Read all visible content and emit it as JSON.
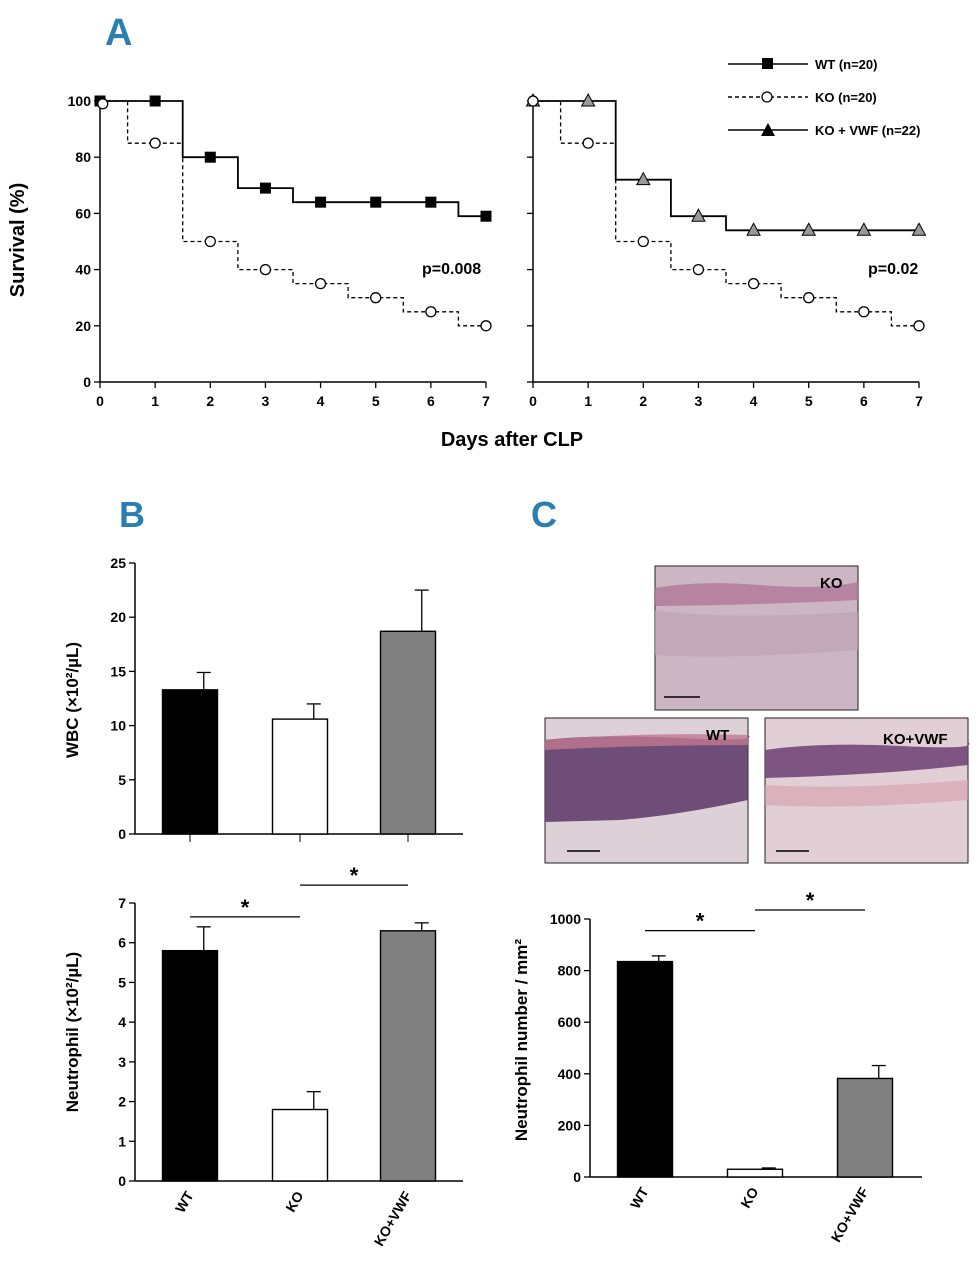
{
  "panels": {
    "a": "A",
    "b": "B",
    "c": "C"
  },
  "colors": {
    "wt": "#000000",
    "ko": "#ffffff",
    "kovwf": "#808080",
    "accent": "#2a7fb0"
  },
  "panel_a": {
    "xlabel": "Days after CLP",
    "ylabel": "Survival (%)",
    "legend": {
      "wt": "WT (n=20)",
      "ko": "KO (n=20)",
      "kovwf": "KO + VWF (n=22)"
    },
    "p_left": "p=0.008",
    "p_right": "p=0.02"
  },
  "panel_b_top": {
    "ylabel": "WBC (×10²/µL)"
  },
  "panel_b_bottom": {
    "ylabel": "Neutrophil (×10²/µL)",
    "sig_marks": [
      "*",
      "*"
    ]
  },
  "panel_c": {
    "histo_labels": {
      "ko": "KO",
      "wt": "WT",
      "kovwf": "KO+VWF"
    },
    "ylabel": "Neutrophil number / mm²",
    "sig_marks": [
      "*",
      "*"
    ]
  },
  "chart_data": [
    {
      "id": "survival-left",
      "type": "line",
      "title": "",
      "xlabel": "Days after CLP",
      "ylabel": "Survival (%)",
      "xlim": [
        0,
        7
      ],
      "ylim": [
        0,
        100
      ],
      "xticks": [
        0,
        1,
        2,
        3,
        4,
        5,
        6,
        7
      ],
      "yticks": [
        0,
        20,
        40,
        60,
        80,
        100
      ],
      "series": [
        {
          "name": "WT (n=20)",
          "marker": "square",
          "line": "solid",
          "steps": [
            [
              0,
              100
            ],
            [
              1.5,
              100
            ],
            [
              1.5,
              80
            ],
            [
              2.5,
              80
            ],
            [
              2.5,
              69
            ],
            [
              3.5,
              69
            ],
            [
              3.5,
              64
            ],
            [
              6.5,
              64
            ],
            [
              6.5,
              59
            ],
            [
              7,
              59
            ]
          ],
          "points": [
            [
              0,
              100
            ],
            [
              1,
              100
            ],
            [
              2,
              80
            ],
            [
              3,
              69
            ],
            [
              4,
              64
            ],
            [
              5,
              64
            ],
            [
              6,
              64
            ],
            [
              7,
              59
            ]
          ]
        },
        {
          "name": "KO (n=20)",
          "marker": "circle",
          "line": "dashed",
          "steps": [
            [
              0,
              100
            ],
            [
              0.5,
              100
            ],
            [
              0.5,
              85
            ],
            [
              1.5,
              85
            ],
            [
              1.5,
              50
            ],
            [
              2.5,
              50
            ],
            [
              2.5,
              40
            ],
            [
              3.5,
              40
            ],
            [
              3.5,
              35
            ],
            [
              4.5,
              35
            ],
            [
              4.5,
              30
            ],
            [
              5.5,
              30
            ],
            [
              5.5,
              25
            ],
            [
              6.5,
              25
            ],
            [
              6.5,
              20
            ],
            [
              7,
              20
            ]
          ],
          "points": [
            [
              0.05,
              99
            ],
            [
              1,
              85
            ],
            [
              2,
              50
            ],
            [
              3,
              40
            ],
            [
              4,
              35
            ],
            [
              5,
              30
            ],
            [
              6,
              25
            ],
            [
              7,
              20
            ]
          ]
        }
      ]
    },
    {
      "id": "survival-right",
      "type": "line",
      "title": "",
      "xlabel": "Days after CLP",
      "ylabel": "",
      "xlim": [
        0,
        7
      ],
      "ylim": [
        0,
        100
      ],
      "xticks": [
        0,
        1,
        2,
        3,
        4,
        5,
        6,
        7
      ],
      "yticks": [],
      "series": [
        {
          "name": "KO + VWF (n=22)",
          "marker": "triangle",
          "line": "solid",
          "steps": [
            [
              0,
              100
            ],
            [
              1.5,
              100
            ],
            [
              1.5,
              72
            ],
            [
              2.5,
              72
            ],
            [
              2.5,
              59
            ],
            [
              3.5,
              59
            ],
            [
              3.5,
              54
            ],
            [
              7,
              54
            ]
          ],
          "points": [
            [
              0,
              100
            ],
            [
              1,
              100
            ],
            [
              2,
              72
            ],
            [
              3,
              59
            ],
            [
              4,
              54
            ],
            [
              5,
              54
            ],
            [
              6,
              54
            ],
            [
              7,
              54
            ]
          ]
        },
        {
          "name": "KO (n=20)",
          "marker": "circle",
          "line": "dashed",
          "steps": [
            [
              0,
              100
            ],
            [
              0.5,
              100
            ],
            [
              0.5,
              85
            ],
            [
              1.5,
              85
            ],
            [
              1.5,
              50
            ],
            [
              2.5,
              50
            ],
            [
              2.5,
              40
            ],
            [
              3.5,
              40
            ],
            [
              3.5,
              35
            ],
            [
              4.5,
              35
            ],
            [
              4.5,
              30
            ],
            [
              5.5,
              30
            ],
            [
              5.5,
              25
            ],
            [
              6.5,
              25
            ],
            [
              6.5,
              20
            ],
            [
              7,
              20
            ]
          ],
          "points": [
            [
              0,
              100
            ],
            [
              1,
              85
            ],
            [
              2,
              50
            ],
            [
              3,
              40
            ],
            [
              4,
              35
            ],
            [
              5,
              30
            ],
            [
              6,
              25
            ],
            [
              7,
              20
            ]
          ]
        }
      ]
    },
    {
      "id": "wbc",
      "type": "bar",
      "ylabel": "WBC (×10²/µL)",
      "categories": [
        "WT",
        "KO",
        "KO+VWF"
      ],
      "show_category_labels": false,
      "values": [
        13.3,
        10.6,
        18.7
      ],
      "errors": [
        1.6,
        1.4,
        3.8
      ],
      "fills": [
        "#000000",
        "#ffffff",
        "#808080"
      ],
      "ylim": [
        0,
        25
      ],
      "yticks": [
        0,
        5,
        10,
        15,
        20,
        25
      ]
    },
    {
      "id": "neutrophil-blood",
      "type": "bar",
      "ylabel": "Neutrophil (×10²/µL)",
      "categories": [
        "WT",
        "KO",
        "KO+VWF"
      ],
      "show_category_labels": true,
      "values": [
        5.8,
        1.8,
        6.3
      ],
      "errors": [
        0.6,
        0.45,
        0.2
      ],
      "fills": [
        "#000000",
        "#ffffff",
        "#808080"
      ],
      "ylim": [
        0,
        7
      ],
      "yticks": [
        0,
        1,
        2,
        3,
        4,
        5,
        6,
        7
      ],
      "significance": [
        {
          "from": 0,
          "to": 1,
          "y": 6.65,
          "label": "*"
        },
        {
          "from": 1,
          "to": 2,
          "y": 7.45,
          "label": "*"
        }
      ]
    },
    {
      "id": "neutrophil-tissue",
      "type": "bar",
      "ylabel": "Neutrophil number / mm²",
      "categories": [
        "WT",
        "KO",
        "KO+VWF"
      ],
      "show_category_labels": true,
      "values": [
        835,
        30,
        382
      ],
      "errors": [
        22,
        5,
        50
      ],
      "fills": [
        "#000000",
        "#ffffff",
        "#808080"
      ],
      "ylim": [
        0,
        1000
      ],
      "yticks": [
        0,
        200,
        400,
        600,
        800,
        1000
      ],
      "significance": [
        {
          "from": 0,
          "to": 1,
          "y": 955,
          "label": "*"
        },
        {
          "from": 1,
          "to": 2,
          "y": 1035,
          "label": "*"
        }
      ]
    }
  ]
}
